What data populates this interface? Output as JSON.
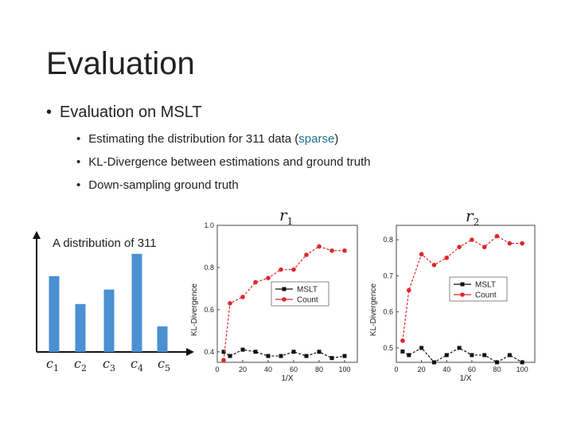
{
  "slide": {
    "title": "Evaluation",
    "bullet": "Evaluation on MSLT",
    "sub_bullets": [
      {
        "pre": "Estimating the distribution for 311 data (",
        "highlight": "sparse",
        "post": ")"
      },
      {
        "text": "KL-Divergence between estimations and ground truth"
      },
      {
        "text": "Down-sampling ground truth"
      }
    ],
    "bullet_glyph": "•",
    "highlight_color": "#1f6f8b"
  },
  "chart_data": [
    {
      "type": "bar",
      "title": "A distribution of 311",
      "categories": [
        "c1",
        "c2",
        "c3",
        "c4",
        "c5"
      ],
      "category_labels": [
        {
          "base": "c",
          "sub": "1"
        },
        {
          "base": "c",
          "sub": "2"
        },
        {
          "base": "c",
          "sub": "3"
        },
        {
          "base": "c",
          "sub": "4"
        },
        {
          "base": "c",
          "sub": "5"
        }
      ],
      "values": [
        0.68,
        0.43,
        0.56,
        0.88,
        0.23
      ],
      "ylim": [
        0,
        1
      ],
      "color": "#4a90d2"
    },
    {
      "type": "line",
      "label": {
        "base": "r",
        "sub": "1"
      },
      "xlabel": "1/X",
      "ylabel": "KL-Divergence",
      "xlim": [
        0,
        110
      ],
      "ylim": [
        0.35,
        1.0
      ],
      "xticks": [
        "0",
        "20",
        "40",
        "60",
        "80",
        "100"
      ],
      "yticks": [
        "0.4",
        "0.6",
        "0.8",
        "1.0"
      ],
      "yticks_values": [
        0.4,
        0.6,
        0.8,
        1.0
      ],
      "legend": [
        "MSLT",
        "Count"
      ],
      "series": [
        {
          "name": "MSLT",
          "color": "#111111",
          "marker": "square",
          "x": [
            5,
            10,
            20,
            30,
            40,
            50,
            60,
            70,
            80,
            90,
            100
          ],
          "y": [
            0.4,
            0.38,
            0.41,
            0.4,
            0.38,
            0.38,
            0.4,
            0.38,
            0.4,
            0.37,
            0.38
          ]
        },
        {
          "name": "Count",
          "color": "#e0272a",
          "marker": "circle",
          "x": [
            5,
            10,
            20,
            30,
            40,
            50,
            60,
            70,
            80,
            90,
            100
          ],
          "y": [
            0.36,
            0.63,
            0.66,
            0.73,
            0.75,
            0.79,
            0.79,
            0.86,
            0.9,
            0.88,
            0.88
          ]
        }
      ]
    },
    {
      "type": "line",
      "label": {
        "base": "r",
        "sub": "2"
      },
      "xlabel": "1/X",
      "ylabel": "KL-Divergence",
      "xlim": [
        0,
        110
      ],
      "ylim": [
        0.46,
        0.84
      ],
      "xticks": [
        "0",
        "20",
        "40",
        "60",
        "80",
        "100"
      ],
      "yticks": [
        "0.5",
        "0.6",
        "0.7",
        "0.8"
      ],
      "yticks_values": [
        0.5,
        0.6,
        0.7,
        0.8
      ],
      "legend": [
        "MSLT",
        "Count"
      ],
      "series": [
        {
          "name": "MSLT",
          "color": "#111111",
          "marker": "square",
          "x": [
            5,
            10,
            20,
            30,
            40,
            50,
            60,
            70,
            80,
            90,
            100
          ],
          "y": [
            0.49,
            0.48,
            0.5,
            0.46,
            0.48,
            0.5,
            0.48,
            0.48,
            0.46,
            0.48,
            0.46
          ]
        },
        {
          "name": "Count",
          "color": "#e0272a",
          "marker": "circle",
          "x": [
            5,
            10,
            20,
            30,
            40,
            50,
            60,
            70,
            80,
            90,
            100
          ],
          "y": [
            0.52,
            0.66,
            0.76,
            0.73,
            0.75,
            0.78,
            0.8,
            0.78,
            0.81,
            0.79,
            0.79
          ]
        }
      ]
    }
  ]
}
